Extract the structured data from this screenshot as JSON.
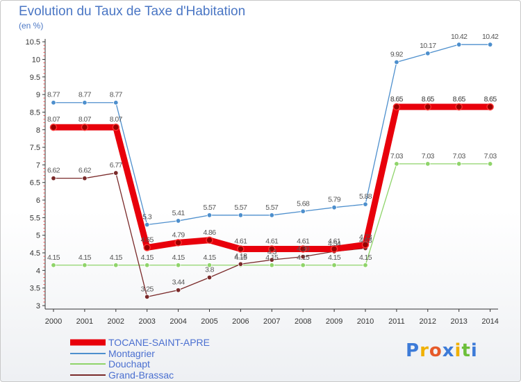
{
  "chart_data": {
    "type": "line",
    "title": "Evolution du Taux de Taxe d'Habitation",
    "ylabel": "(en %)",
    "xlabel": "",
    "categories": [
      "2000",
      "2001",
      "2002",
      "2003",
      "2004",
      "2005",
      "2006",
      "2007",
      "2008",
      "2009",
      "2010",
      "2011",
      "2012",
      "2013",
      "2014"
    ],
    "ylim": [
      3,
      10.5
    ],
    "yticks": [
      "3",
      "3.5",
      "4",
      "4.5",
      "5",
      "5.5",
      "6",
      "6.5",
      "7",
      "7.5",
      "8",
      "8.5",
      "9",
      "9.5",
      "10",
      "10.5"
    ],
    "grid": false,
    "legend_position": "bottom-left",
    "series": [
      {
        "name": "TOCANE-SAINT-APRE",
        "color": "#e8000b",
        "values": [
          8.07,
          8.07,
          8.07,
          4.65,
          4.79,
          4.86,
          4.61,
          4.61,
          4.61,
          4.61,
          4.73,
          8.65,
          8.65,
          8.65,
          8.65
        ],
        "labels": [
          "8.07",
          "8.07",
          "8.07",
          "4.65",
          "4.79",
          "4.86",
          "4.61",
          "4.61",
          "4.61",
          "4.61",
          "4.73",
          "8.65",
          "8.65",
          "8.65",
          "8.65"
        ]
      },
      {
        "name": "Montagrier",
        "color": "#4d8fcd",
        "values": [
          8.77,
          8.77,
          8.77,
          5.3,
          5.41,
          5.57,
          5.57,
          5.57,
          5.68,
          5.79,
          5.88,
          9.92,
          10.17,
          10.42,
          10.42
        ],
        "labels": [
          "8.77",
          "8.77",
          "8.77",
          "5.3",
          "5.41",
          "5.57",
          "5.57",
          "5.57",
          "5.68",
          "5.79",
          "5.88",
          "9.92",
          "10.17",
          "10.42",
          "10.42"
        ]
      },
      {
        "name": "Douchapt",
        "color": "#8fd46a",
        "values": [
          4.15,
          4.15,
          4.15,
          4.15,
          4.15,
          4.15,
          4.15,
          4.15,
          4.15,
          4.15,
          4.15,
          7.03,
          7.03,
          7.03,
          7.03
        ],
        "labels": [
          "4.15",
          "4.15",
          "4.15",
          "4.15",
          "4.15",
          "4.15",
          "4.15",
          "4.15",
          "4.15",
          "4.15",
          "4.15",
          "7.03",
          "7.03",
          "7.03",
          "7.03"
        ]
      },
      {
        "name": "Grand-Brassac",
        "color": "#7a2a2a",
        "values": [
          6.62,
          6.62,
          6.77,
          3.25,
          3.44,
          3.8,
          4.18,
          4.3,
          4.39,
          4.54,
          4.63,
          8.65,
          8.65,
          8.65,
          8.65
        ],
        "labels": [
          "6.62",
          "6.62",
          "6.77",
          "3.25",
          "3.44",
          "3.8",
          "4.18",
          "4.3",
          "4.39",
          "4.54",
          "4.63",
          "8.65",
          "8.65",
          "8.65",
          "8.65"
        ]
      }
    ]
  },
  "brand": {
    "letters": [
      "P",
      "r",
      "o",
      "x",
      "i",
      "t",
      "i"
    ],
    "colors": [
      "#3d7bd8",
      "#f0b000",
      "#e65a2a",
      "#3d7bd8",
      "#f0b000",
      "#6cbf3a",
      "#3d7bd8"
    ]
  }
}
